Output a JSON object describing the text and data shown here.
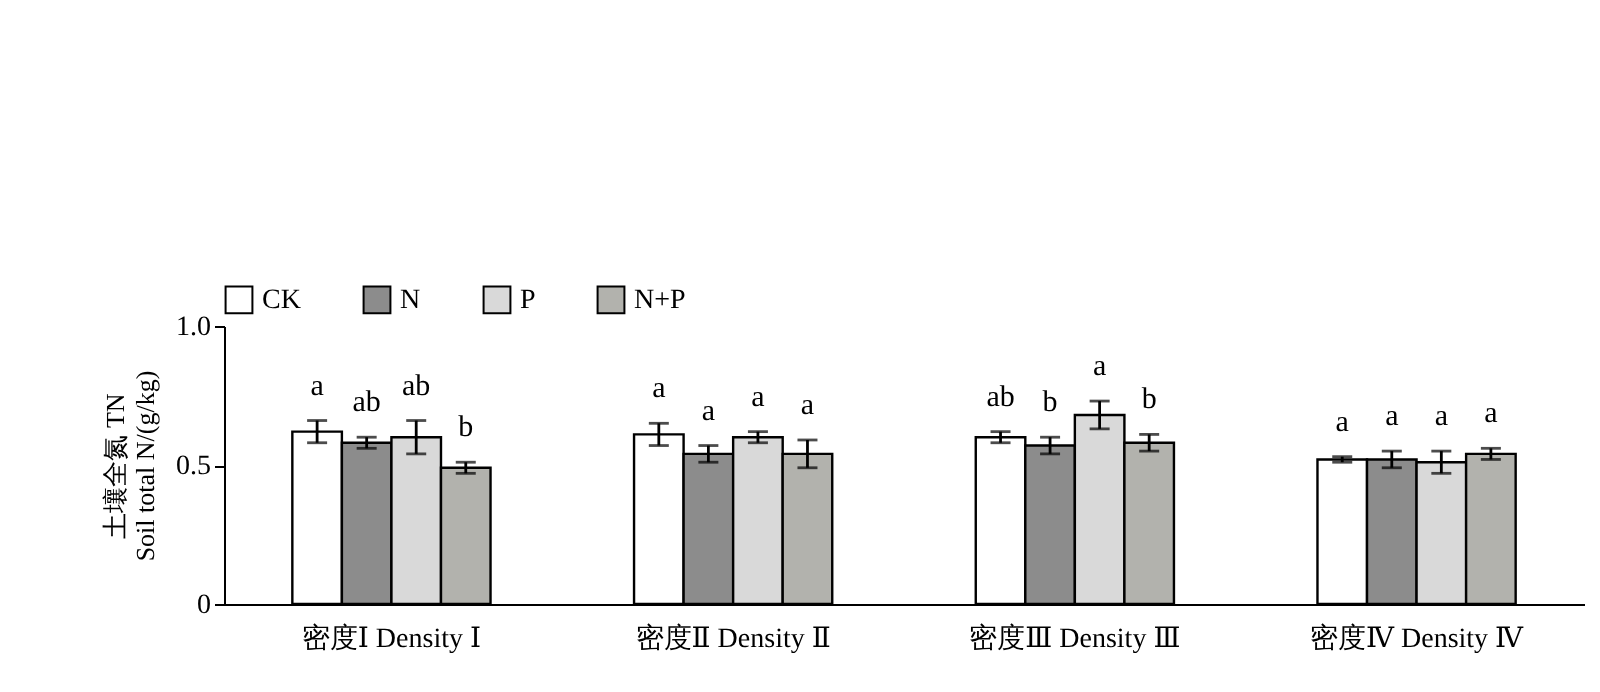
{
  "chart_data": {
    "type": "bar",
    "ylabel": "土壤全氮 TN\nSoil total N/(g/kg)",
    "categories": [
      "密度Ⅰ Density Ⅰ",
      "密度Ⅱ Density Ⅱ",
      "密度Ⅲ Density Ⅲ",
      "密度Ⅳ Density Ⅳ"
    ],
    "series": [
      {
        "name": "CK",
        "color": "#ffffff",
        "values": [
          0.62,
          0.61,
          0.6,
          0.52
        ],
        "errors": [
          0.04,
          0.04,
          0.02,
          0.01
        ]
      },
      {
        "name": "N",
        "color": "#8c8c8c",
        "values": [
          0.58,
          0.54,
          0.57,
          0.52
        ],
        "errors": [
          0.02,
          0.03,
          0.03,
          0.03
        ]
      },
      {
        "name": "P",
        "color": "#d9d9d9",
        "values": [
          0.6,
          0.6,
          0.68,
          0.51
        ],
        "errors": [
          0.06,
          0.02,
          0.05,
          0.04
        ]
      },
      {
        "name": "N+P",
        "color": "#b2b2ad",
        "values": [
          0.49,
          0.54,
          0.58,
          0.54
        ],
        "errors": [
          0.02,
          0.05,
          0.03,
          0.02
        ]
      }
    ],
    "annotations": [
      {
        "text": "a",
        "x": "密度Ⅰ Density Ⅰ",
        "y": 0.62
      },
      {
        "text": "ab",
        "x": "密度Ⅰ Density Ⅰ",
        "y": 0.58
      },
      {
        "text": "ab",
        "x": "密度Ⅰ Density Ⅰ",
        "y": 0.6
      },
      {
        "text": "b",
        "x": "密度Ⅰ Density Ⅰ",
        "y": 0.49
      },
      {
        "text": "a",
        "x": "密度Ⅱ Density Ⅱ",
        "y": 0.61
      },
      {
        "text": "a",
        "x": "密度Ⅱ Density Ⅱ",
        "y": 0.54
      },
      {
        "text": "a",
        "x": "密度Ⅱ Density Ⅱ",
        "y": 0.6
      },
      {
        "text": "a",
        "x": "密度Ⅱ Density Ⅱ",
        "y": 0.54
      },
      {
        "text": "ab",
        "x": "密度Ⅲ Density Ⅲ",
        "y": 0.6
      },
      {
        "text": "b",
        "x": "密度Ⅲ Density Ⅲ",
        "y": 0.57
      },
      {
        "text": "a",
        "x": "密度Ⅲ Density Ⅲ",
        "y": 0.68
      },
      {
        "text": "b",
        "x": "密度Ⅲ Density Ⅲ",
        "y": 0.58
      },
      {
        "text": "a",
        "x": "密度Ⅳ Density Ⅳ",
        "y": 0.52
      },
      {
        "text": "a",
        "x": "密度Ⅳ Density Ⅳ",
        "y": 0.52
      },
      {
        "text": "a",
        "x": "密度Ⅳ Density Ⅳ",
        "y": 0.51
      },
      {
        "text": "a",
        "x": "密度Ⅳ Density Ⅳ",
        "y": 0.54
      }
    ],
    "ylim": [
      0,
      1.0
    ],
    "yticks": [
      0,
      {
        "value": 0.5,
        "label": "0.5"
      },
      {
        "value": 1.0,
        "label": "1.0"
      }
    ],
    "legend": "top",
    "grid": false
  }
}
